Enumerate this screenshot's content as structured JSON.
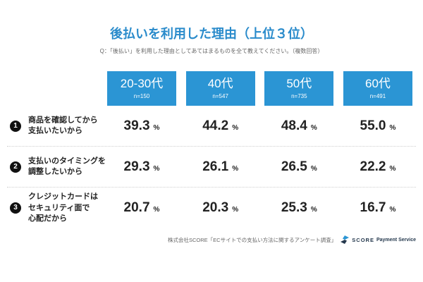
{
  "colors": {
    "accent": "#2b95d4",
    "title": "#2a8bcb",
    "rank_badge": "#111111",
    "text": "#222222",
    "muted": "#666666",
    "separator": "#cfcfcf",
    "logo_dark": "#24384d"
  },
  "chart_data": {
    "type": "table",
    "title": "後払いを利用した理由（上位３位）",
    "subtitle": "Q：「後払い」を利用した理由としてあてはまるものを全て教えてください。（複数回答）",
    "columns": [
      {
        "label": "20-30代",
        "sample": "n=150"
      },
      {
        "label": "40代",
        "sample": "n=547"
      },
      {
        "label": "50代",
        "sample": "n=735"
      },
      {
        "label": "60代",
        "sample": "n=491"
      }
    ],
    "rows": [
      {
        "rank": "1",
        "label": [
          "商品を確認してから",
          "支払いたいから"
        ],
        "values": [
          39.3,
          44.2,
          48.4,
          55.0
        ]
      },
      {
        "rank": "2",
        "label": [
          "支払いのタイミングを",
          "調整したいから"
        ],
        "values": [
          29.3,
          26.1,
          26.5,
          22.2
        ]
      },
      {
        "rank": "3",
        "label": [
          "クレジットカードは",
          "セキュリティ面で",
          "心配だから"
        ],
        "values": [
          20.7,
          20.3,
          25.3,
          16.7
        ]
      }
    ],
    "unit": "%"
  },
  "footer": {
    "source": "株式会社SCORE「ECサイトでの支払い方法に関するアンケート調査」",
    "logo": {
      "icon": "score-logo-icon",
      "brand": "SCORE",
      "product": "Payment Service"
    }
  }
}
